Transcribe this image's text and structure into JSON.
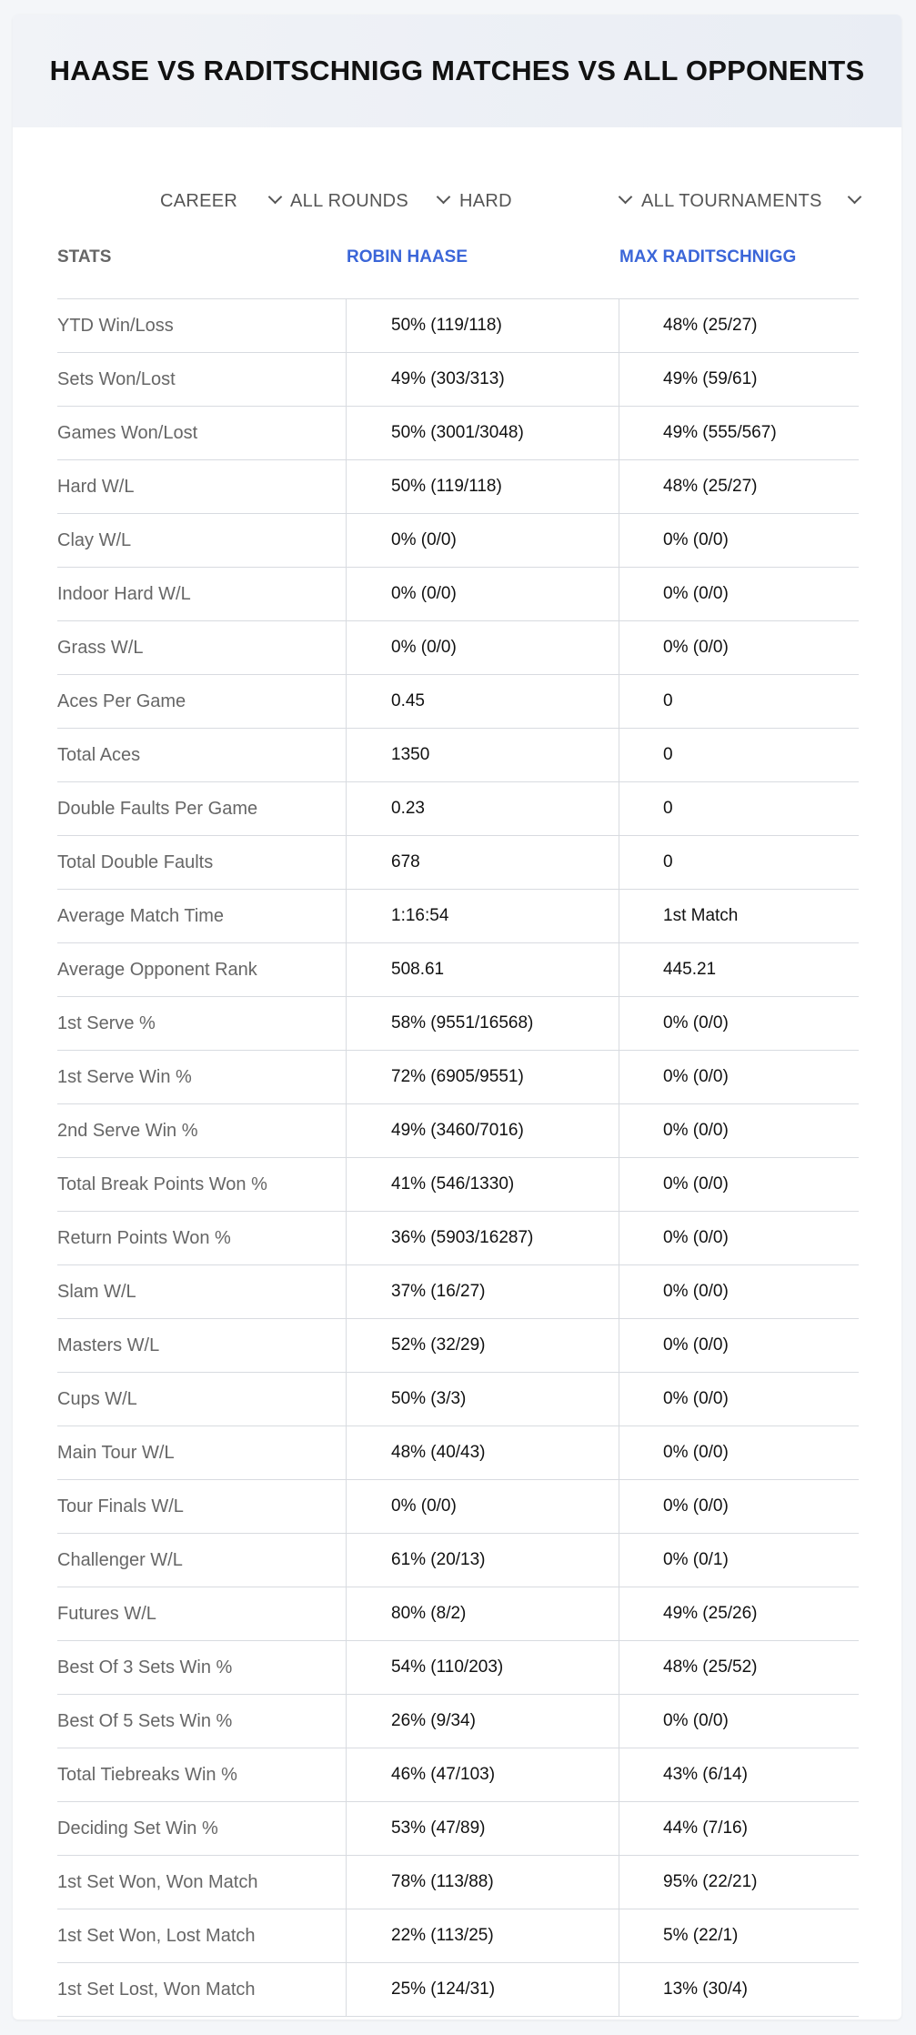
{
  "header": {
    "title": "HAASE VS RADITSCHNIGG MATCHES VS ALL OPPONENTS"
  },
  "filters": {
    "period": "CAREER",
    "rounds": "ALL ROUNDS",
    "surface": "HARD",
    "tournaments": "ALL TOURNAMENTS"
  },
  "table": {
    "headers": {
      "stats": "STATS",
      "player1": "ROBIN HAASE",
      "player2": "MAX RADITSCHNIGG"
    },
    "rows": [
      {
        "label": "YTD Win/Loss",
        "p1": "50% (119/118)",
        "p2": "48% (25/27)"
      },
      {
        "label": "Sets Won/Lost",
        "p1": "49% (303/313)",
        "p2": "49% (59/61)"
      },
      {
        "label": "Games Won/Lost",
        "p1": "50% (3001/3048)",
        "p2": "49% (555/567)"
      },
      {
        "label": "Hard W/L",
        "p1": "50% (119/118)",
        "p2": "48% (25/27)"
      },
      {
        "label": "Clay W/L",
        "p1": "0% (0/0)",
        "p2": "0% (0/0)"
      },
      {
        "label": "Indoor Hard W/L",
        "p1": "0% (0/0)",
        "p2": "0% (0/0)"
      },
      {
        "label": "Grass W/L",
        "p1": "0% (0/0)",
        "p2": "0% (0/0)"
      },
      {
        "label": "Aces Per Game",
        "p1": "0.45",
        "p2": "0"
      },
      {
        "label": "Total Aces",
        "p1": "1350",
        "p2": "0"
      },
      {
        "label": "Double Faults Per Game",
        "p1": "0.23",
        "p2": "0"
      },
      {
        "label": "Total Double Faults",
        "p1": "678",
        "p2": "0"
      },
      {
        "label": "Average Match Time",
        "p1": "1:16:54",
        "p2": "1st Match"
      },
      {
        "label": "Average Opponent Rank",
        "p1": "508.61",
        "p2": "445.21"
      },
      {
        "label": "1st Serve %",
        "p1": "58% (9551/16568)",
        "p2": "0% (0/0)"
      },
      {
        "label": "1st Serve Win %",
        "p1": "72% (6905/9551)",
        "p2": "0% (0/0)"
      },
      {
        "label": "2nd Serve Win %",
        "p1": "49% (3460/7016)",
        "p2": "0% (0/0)"
      },
      {
        "label": "Total Break Points Won %",
        "p1": "41% (546/1330)",
        "p2": "0% (0/0)"
      },
      {
        "label": "Return Points Won %",
        "p1": "36% (5903/16287)",
        "p2": "0% (0/0)"
      },
      {
        "label": "Slam W/L",
        "p1": "37% (16/27)",
        "p2": "0% (0/0)"
      },
      {
        "label": "Masters W/L",
        "p1": "52% (32/29)",
        "p2": "0% (0/0)"
      },
      {
        "label": "Cups W/L",
        "p1": "50% (3/3)",
        "p2": "0% (0/0)"
      },
      {
        "label": "Main Tour W/L",
        "p1": "48% (40/43)",
        "p2": "0% (0/0)"
      },
      {
        "label": "Tour Finals W/L",
        "p1": "0% (0/0)",
        "p2": "0% (0/0)"
      },
      {
        "label": "Challenger W/L",
        "p1": "61% (20/13)",
        "p2": "0% (0/1)"
      },
      {
        "label": "Futures W/L",
        "p1": "80% (8/2)",
        "p2": "49% (25/26)"
      },
      {
        "label": "Best Of 3 Sets Win %",
        "p1": "54% (110/203)",
        "p2": "48% (25/52)"
      },
      {
        "label": "Best Of 5 Sets Win %",
        "p1": "26% (9/34)",
        "p2": "0% (0/0)"
      },
      {
        "label": "Total Tiebreaks Win %",
        "p1": "46% (47/103)",
        "p2": "43% (6/14)"
      },
      {
        "label": "Deciding Set Win %",
        "p1": "53% (47/89)",
        "p2": "44% (7/16)"
      },
      {
        "label": "1st Set Won, Won Match",
        "p1": "78% (113/88)",
        "p2": "95% (22/21)"
      },
      {
        "label": "1st Set Won, Lost Match",
        "p1": "22% (113/25)",
        "p2": "5% (22/1)"
      },
      {
        "label": "1st Set Lost, Won Match",
        "p1": "25% (124/31)",
        "p2": "13% (30/4)"
      }
    ]
  }
}
